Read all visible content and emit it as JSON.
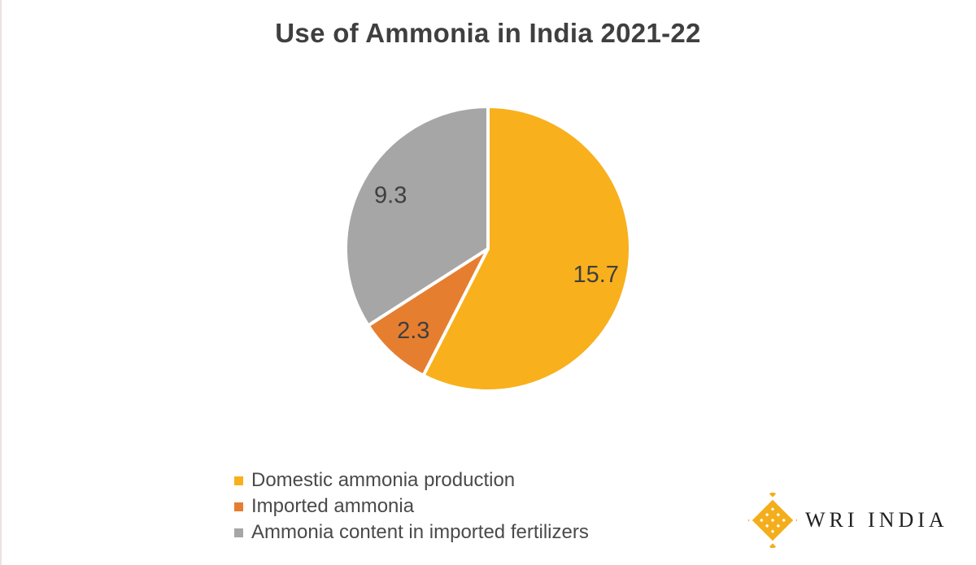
{
  "title": "Use of Ammonia in India 2021-22",
  "chart_data": {
    "type": "pie",
    "title": "Use of Ammonia in India 2021-22",
    "slices": [
      {
        "label": "Domestic ammonia production",
        "value": 15.7,
        "display": "15.7",
        "color": "#F8B01D"
      },
      {
        "label": "Imported ammonia",
        "value": 2.3,
        "display": "2.3",
        "color": "#E67E30"
      },
      {
        "label": "Ammonia content in imported fertilizers",
        "value": 9.3,
        "display": "9.3",
        "color": "#A6A6A6"
      }
    ],
    "total": 27.3,
    "start_angle_deg": 0,
    "direction": "clockwise",
    "legend_position": "bottom-left",
    "data_label_color": "#3F3F3F",
    "slice_separator_color": "#FFFFFF"
  },
  "branding": {
    "text": "WRI INDIA",
    "mark": "wri-weave-mark",
    "mark_color": "#F4AE1B",
    "text_color": "#1F1F1F"
  }
}
